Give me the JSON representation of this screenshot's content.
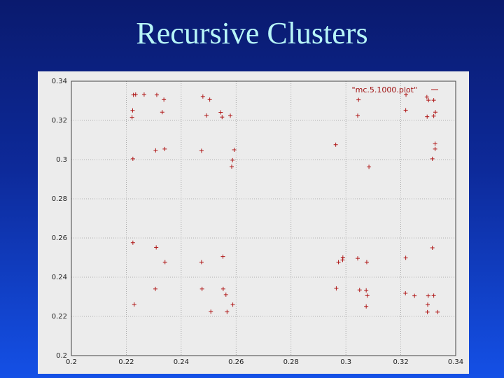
{
  "slide": {
    "title": "Recursive Clusters"
  },
  "colors": {
    "background_top": "#0a1a6e",
    "background_bottom": "#1450e6",
    "title": "#b7f5f7",
    "point": "#b01818"
  },
  "chart_data": {
    "type": "scatter",
    "title": "",
    "xlabel": "",
    "ylabel": "",
    "xlim": [
      0.2,
      0.34
    ],
    "ylim": [
      0.2,
      0.34
    ],
    "grid": true,
    "legend": "top-right",
    "x_ticks": [
      "0.2",
      "0.22",
      "0.24",
      "0.26",
      "0.28",
      "0.3",
      "0.32",
      "0.34"
    ],
    "y_ticks": [
      "0.2",
      "0.22",
      "0.24",
      "0.26",
      "0.28",
      "0.3",
      "0.32",
      "0.34"
    ],
    "series": [
      {
        "name": "\"mc.5.1000.plot\"",
        "marker": "+",
        "points": [
          [
            0.2226,
            0.333
          ],
          [
            0.2234,
            0.3332
          ],
          [
            0.2265,
            0.3332
          ],
          [
            0.2311,
            0.333
          ],
          [
            0.2337,
            0.3306
          ],
          [
            0.2223,
            0.3251
          ],
          [
            0.2221,
            0.3216
          ],
          [
            0.2331,
            0.3242
          ],
          [
            0.2479,
            0.3322
          ],
          [
            0.2504,
            0.3306
          ],
          [
            0.2492,
            0.3225
          ],
          [
            0.2544,
            0.3241
          ],
          [
            0.2549,
            0.3217
          ],
          [
            0.2579,
            0.3224
          ],
          [
            0.2307,
            0.3047
          ],
          [
            0.234,
            0.3054
          ],
          [
            0.2224,
            0.3004
          ],
          [
            0.2474,
            0.3045
          ],
          [
            0.2593,
            0.305
          ],
          [
            0.2587,
            0.2997
          ],
          [
            0.2584,
            0.2964
          ],
          [
            0.3046,
            0.3305
          ],
          [
            0.3043,
            0.3224
          ],
          [
            0.2963,
            0.3076
          ],
          [
            0.3084,
            0.2963
          ],
          [
            0.3219,
            0.3331
          ],
          [
            0.3218,
            0.3252
          ],
          [
            0.3295,
            0.3319
          ],
          [
            0.3301,
            0.3303
          ],
          [
            0.332,
            0.3303
          ],
          [
            0.3296,
            0.3219
          ],
          [
            0.332,
            0.3222
          ],
          [
            0.3326,
            0.3242
          ],
          [
            0.3325,
            0.3081
          ],
          [
            0.3325,
            0.3054
          ],
          [
            0.3315,
            0.3004
          ],
          [
            0.2224,
            0.2576
          ],
          [
            0.2309,
            0.2552
          ],
          [
            0.2341,
            0.2477
          ],
          [
            0.2474,
            0.2477
          ],
          [
            0.2552,
            0.2505
          ],
          [
            0.2306,
            0.234
          ],
          [
            0.2476,
            0.234
          ],
          [
            0.2553,
            0.234
          ],
          [
            0.2563,
            0.2311
          ],
          [
            0.2588,
            0.226
          ],
          [
            0.2229,
            0.2261
          ],
          [
            0.2508,
            0.2224
          ],
          [
            0.2567,
            0.2223
          ],
          [
            0.2973,
            0.2477
          ],
          [
            0.2988,
            0.2488
          ],
          [
            0.2989,
            0.2501
          ],
          [
            0.3043,
            0.2496
          ],
          [
            0.3076,
            0.2477
          ],
          [
            0.2965,
            0.2343
          ],
          [
            0.305,
            0.2335
          ],
          [
            0.3074,
            0.2333
          ],
          [
            0.3078,
            0.2306
          ],
          [
            0.3074,
            0.2251
          ],
          [
            0.3218,
            0.2499
          ],
          [
            0.3217,
            0.2318
          ],
          [
            0.325,
            0.2305
          ],
          [
            0.33,
            0.2305
          ],
          [
            0.332,
            0.2306
          ],
          [
            0.3315,
            0.255
          ],
          [
            0.3298,
            0.226
          ],
          [
            0.3297,
            0.2222
          ],
          [
            0.3334,
            0.2222
          ]
        ]
      }
    ]
  }
}
